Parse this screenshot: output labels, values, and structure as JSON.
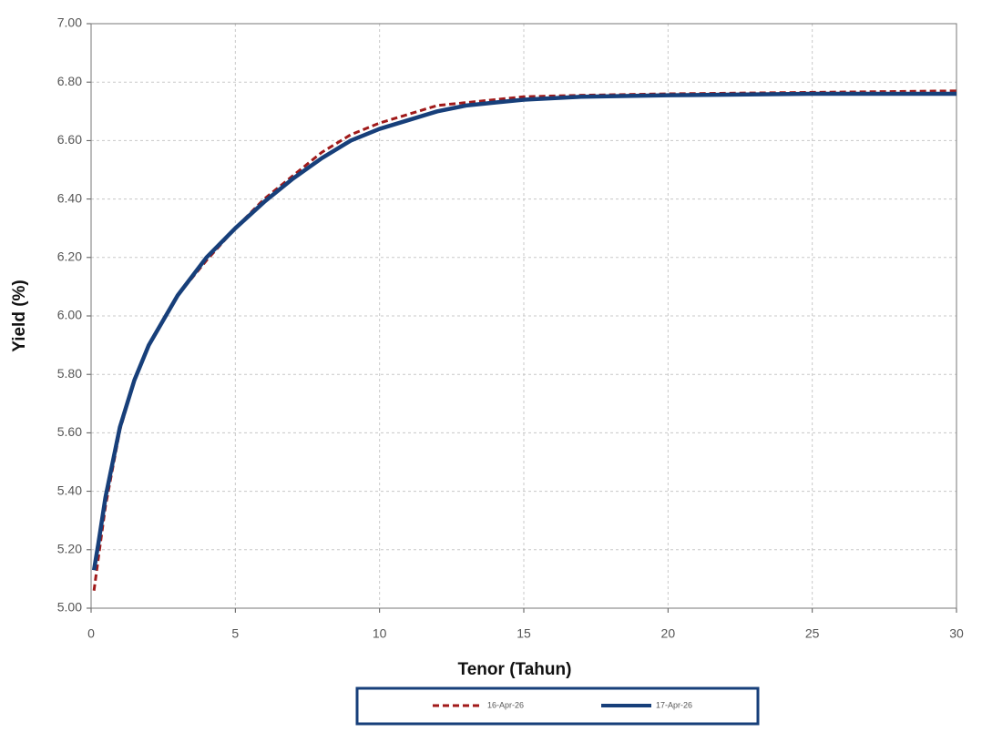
{
  "chart_data": {
    "type": "line",
    "xlabel": "Tenor (Tahun)",
    "ylabel": "Yield (%)",
    "x": [
      0.1,
      0.25,
      0.5,
      1,
      1.5,
      2,
      3,
      4,
      5,
      6,
      7,
      8,
      9,
      10,
      11,
      12,
      13,
      14,
      15,
      17,
      20,
      25,
      30
    ],
    "series": [
      {
        "name": "16-Apr-26",
        "color": "#a01a1a",
        "dashed": true,
        "values": [
          5.06,
          5.17,
          5.35,
          5.61,
          5.78,
          5.9,
          6.07,
          6.19,
          6.3,
          6.4,
          6.48,
          6.56,
          6.62,
          6.66,
          6.69,
          6.72,
          6.73,
          6.74,
          6.75,
          6.755,
          6.76,
          6.765,
          6.77
        ]
      },
      {
        "name": "17-Apr-26",
        "color": "#173f7a",
        "dashed": false,
        "values": [
          5.13,
          5.22,
          5.38,
          5.62,
          5.78,
          5.9,
          6.07,
          6.2,
          6.3,
          6.39,
          6.47,
          6.54,
          6.6,
          6.64,
          6.67,
          6.7,
          6.72,
          6.73,
          6.74,
          6.75,
          6.755,
          6.76,
          6.76
        ]
      }
    ],
    "xlim": [
      0,
      30
    ],
    "xticks": [
      0,
      5,
      10,
      15,
      20,
      25,
      30
    ],
    "ylim": [
      5,
      7
    ],
    "yticks": [
      {
        "value": 5,
        "label": "5.00"
      },
      {
        "value": 5.2,
        "label": "5.20"
      },
      {
        "value": 5.4,
        "label": "5.40"
      },
      {
        "value": 5.6,
        "label": "5.60"
      },
      {
        "value": 5.8,
        "label": "5.80"
      },
      {
        "value": 6,
        "label": "6.00"
      },
      {
        "value": 6.2,
        "label": "6.20"
      },
      {
        "value": 6.4,
        "label": "6.40"
      },
      {
        "value": 6.6,
        "label": "6.60"
      },
      {
        "value": 6.8,
        "label": "6.80"
      },
      {
        "value": 7,
        "label": "7.00"
      }
    ],
    "grid": true
  }
}
